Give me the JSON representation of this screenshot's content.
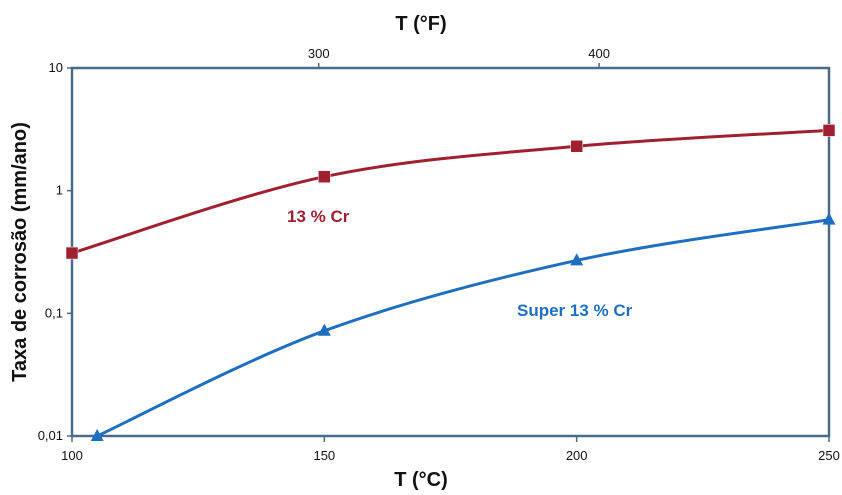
{
  "chart_data": {
    "type": "line",
    "y_scale": "log",
    "grid": false,
    "legend": "inline labels",
    "xlabel": "T (°C)",
    "x2label": "T (°F)",
    "ylabel": "Taxa de corrosão (mm/ano)",
    "xlim": [
      100,
      250
    ],
    "ylim": [
      0.01,
      10
    ],
    "x_ticks": [
      100,
      150,
      200,
      250
    ],
    "x_tick_labels": [
      "100",
      "150",
      "200",
      "250"
    ],
    "x2_ticks": [
      300,
      400
    ],
    "x2_tick_labels": [
      "300",
      "400"
    ],
    "y_ticks": [
      0.01,
      0.1,
      1,
      10
    ],
    "y_tick_labels": [
      "0,01",
      "0,1",
      "1",
      "10"
    ],
    "series": [
      {
        "name": "13 % Cr",
        "color": "#a02030",
        "marker": "square",
        "x": [
          100,
          150,
          200,
          250
        ],
        "y": [
          0.31,
          1.3,
          2.3,
          3.1
        ]
      },
      {
        "name": "Super 13 % Cr",
        "color": "#1f6fc0",
        "marker": "triangle",
        "x": [
          105,
          150,
          200,
          250
        ],
        "y": [
          0.01,
          0.072,
          0.27,
          0.58
        ]
      }
    ]
  }
}
